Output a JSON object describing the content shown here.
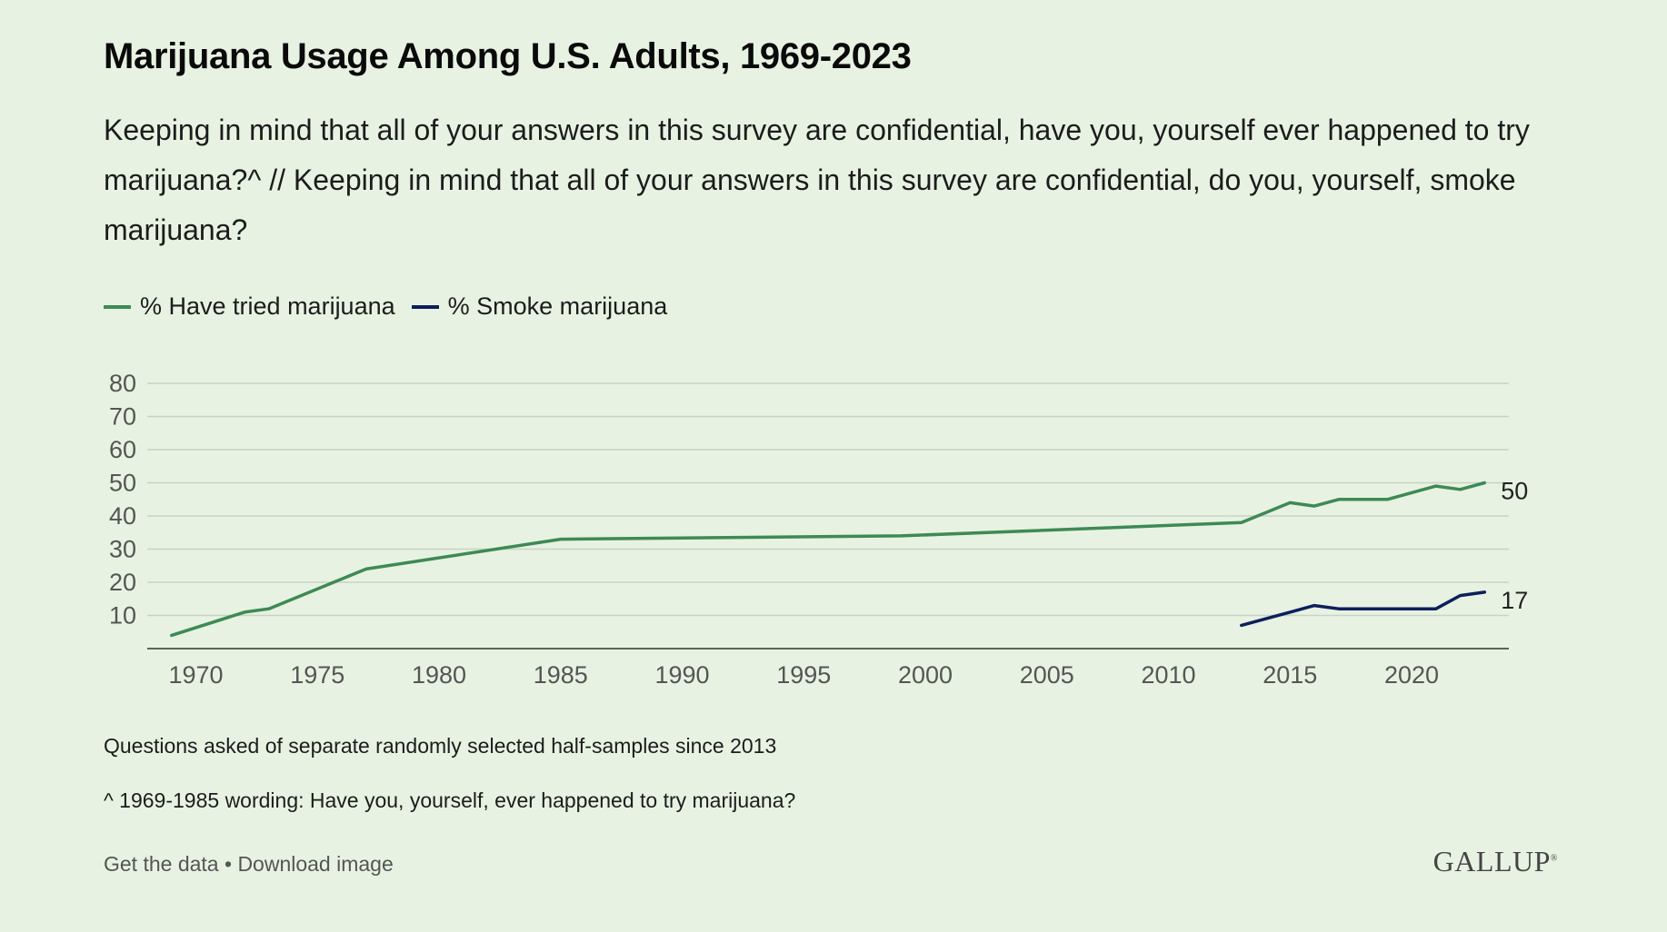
{
  "header": {
    "title": "Marijuana Usage Among U.S. Adults, 1969-2023",
    "subtitle": "Keeping in mind that all of your answers in this survey are confidential, have you, yourself ever happened to try marijuana?^ // Keeping in mind that all of your answers in this survey are confidential, do you, yourself, smoke marijuana?"
  },
  "legend": {
    "items": [
      {
        "label": "% Have tried marijuana",
        "color": "#3d8a55"
      },
      {
        "label": "% Smoke marijuana",
        "color": "#0d1f5c"
      }
    ]
  },
  "notes": {
    "note1": "Questions asked of separate randomly selected half-samples since 2013",
    "note2": "^ 1969-1985 wording: Have you, yourself, ever happened to try marijuana?"
  },
  "footer": {
    "get_data": "Get the data",
    "separator": "•",
    "download": "Download image",
    "brand": "GALLUP"
  },
  "chart_data": {
    "type": "line",
    "title": "Marijuana Usage Among U.S. Adults, 1969-2023",
    "xlabel": "",
    "ylabel": "",
    "xlim": [
      1968,
      2024
    ],
    "ylim": [
      0,
      80
    ],
    "xticks": [
      1970,
      1975,
      1980,
      1985,
      1990,
      1995,
      2000,
      2005,
      2010,
      2015,
      2020
    ],
    "yticks": [
      10,
      20,
      30,
      40,
      50,
      60,
      70,
      80
    ],
    "grid": true,
    "legend_position": "top-left",
    "series": [
      {
        "name": "% Have tried marijuana",
        "color": "#3d8a55",
        "end_label": "50",
        "points": [
          [
            1969,
            4
          ],
          [
            1972,
            11
          ],
          [
            1973,
            12
          ],
          [
            1977,
            24
          ],
          [
            1985,
            33
          ],
          [
            1999,
            34
          ],
          [
            2013,
            38
          ],
          [
            2015,
            44
          ],
          [
            2016,
            43
          ],
          [
            2017,
            45
          ],
          [
            2019,
            45
          ],
          [
            2021,
            49
          ],
          [
            2022,
            48
          ],
          [
            2023,
            50
          ]
        ]
      },
      {
        "name": "% Smoke marijuana",
        "color": "#0d1f5c",
        "end_label": "17",
        "points": [
          [
            2013,
            7
          ],
          [
            2015,
            11
          ],
          [
            2016,
            13
          ],
          [
            2017,
            12
          ],
          [
            2019,
            12
          ],
          [
            2021,
            12
          ],
          [
            2022,
            16
          ],
          [
            2023,
            17
          ]
        ]
      }
    ]
  }
}
